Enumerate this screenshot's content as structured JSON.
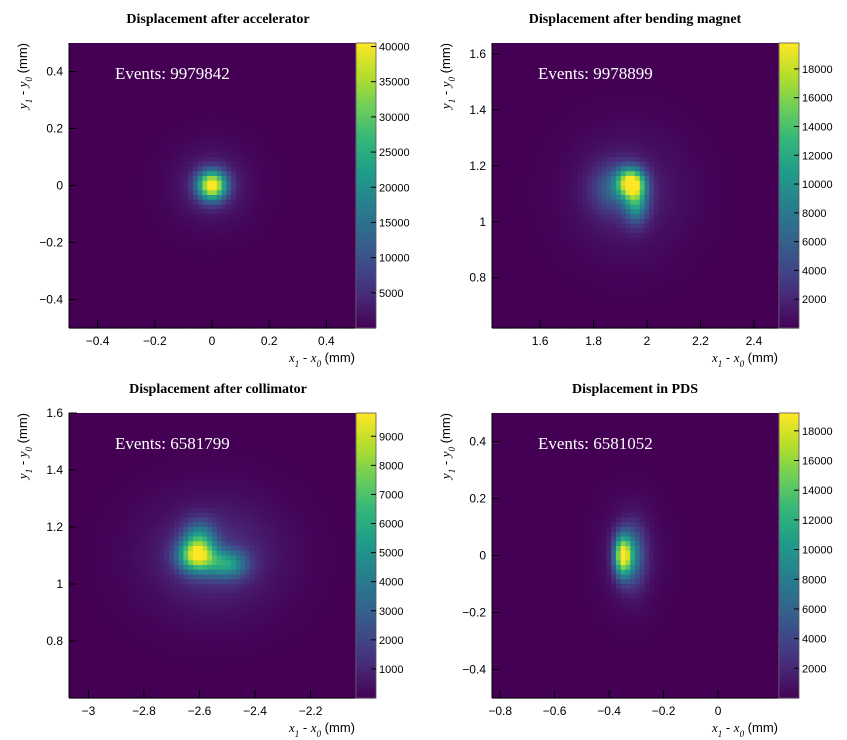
{
  "chart_data": [
    {
      "type": "heatmap",
      "title": "Displacement after accelerator",
      "annotation": "Events: 9979842",
      "xlabel": "x_1 - x_0 (mm)",
      "ylabel": "y_1 - y_0 (mm)",
      "xlim": [
        -0.5,
        0.5
      ],
      "ylim": [
        -0.5,
        0.5
      ],
      "xticks": [
        "−0.4",
        "−0.2",
        "0",
        "0.2",
        "0.4"
      ],
      "xtick_values": [
        -0.4,
        -0.2,
        0,
        0.2,
        0.4
      ],
      "yticks": [
        "−0.4",
        "−0.2",
        "0",
        "0.2",
        "0.4"
      ],
      "ytick_values": [
        -0.4,
        -0.2,
        0,
        0.2,
        0.4
      ],
      "zlim": [
        0,
        40500
      ],
      "colorbar_ticks": [
        "5000",
        "10000",
        "15000",
        "20000",
        "25000",
        "30000",
        "35000",
        "40000"
      ],
      "colorbar_values": [
        5000,
        10000,
        15000,
        20000,
        25000,
        30000,
        35000,
        40000
      ],
      "colormap": "viridis",
      "peaks": [
        {
          "x": 0.0,
          "y": 0.0,
          "value": 40500,
          "sigma_x": 0.035,
          "sigma_y": 0.035
        },
        {
          "x": 0.0,
          "y": 0.0,
          "value": 4000,
          "sigma_x": 0.09,
          "sigma_y": 0.09
        }
      ]
    },
    {
      "type": "heatmap",
      "title": "Displacement after bending magnet",
      "annotation": "Events: 9978899",
      "xlabel": "x_1 - x_0 (mm)",
      "ylabel": "y_1 - y_0 (mm)",
      "xlim": [
        1.42,
        2.49
      ],
      "ylim": [
        0.62,
        1.64
      ],
      "xticks": [
        "1.6",
        "1.8",
        "2",
        "2.2",
        "2.4"
      ],
      "xtick_values": [
        1.6,
        1.8,
        2.0,
        2.2,
        2.4
      ],
      "yticks": [
        "0.8",
        "1",
        "1.2",
        "1.4",
        "1.6"
      ],
      "ytick_values": [
        0.8,
        1.0,
        1.2,
        1.4,
        1.6
      ],
      "zlim": [
        0,
        19800
      ],
      "colorbar_ticks": [
        "2000",
        "4000",
        "6000",
        "8000",
        "10000",
        "12000",
        "14000",
        "16000",
        "18000"
      ],
      "colorbar_values": [
        2000,
        4000,
        6000,
        8000,
        10000,
        12000,
        14000,
        16000,
        18000
      ],
      "colormap": "viridis",
      "peaks": [
        {
          "x": 1.94,
          "y": 1.14,
          "value": 17000,
          "sigma_x": 0.035,
          "sigma_y": 0.035
        },
        {
          "x": 1.96,
          "y": 1.07,
          "value": 9000,
          "sigma_x": 0.03,
          "sigma_y": 0.05
        },
        {
          "x": 1.88,
          "y": 1.12,
          "value": 5000,
          "sigma_x": 0.06,
          "sigma_y": 0.06
        },
        {
          "x": 1.93,
          "y": 1.1,
          "value": 1800,
          "sigma_x": 0.14,
          "sigma_y": 0.14
        }
      ]
    },
    {
      "type": "heatmap",
      "title": "Displacement after collimator",
      "annotation": "Events: 6581799",
      "xlabel": "x_1 - x_0 (mm)",
      "ylabel": "y_1 - y_0 (mm)",
      "xlim": [
        -3.07,
        -2.04
      ],
      "ylim": [
        0.6,
        1.6
      ],
      "xticks": [
        "−3",
        "−2.8",
        "−2.6",
        "−2.4",
        "−2.2"
      ],
      "xtick_values": [
        -3.0,
        -2.8,
        -2.6,
        -2.4,
        -2.2
      ],
      "yticks": [
        "0.8",
        "1",
        "1.2",
        "1.4",
        "1.6"
      ],
      "ytick_values": [
        0.8,
        1.0,
        1.2,
        1.4,
        1.6
      ],
      "zlim": [
        0,
        9800
      ],
      "colorbar_ticks": [
        "1000",
        "2000",
        "3000",
        "4000",
        "5000",
        "6000",
        "7000",
        "8000",
        "9000"
      ],
      "colorbar_values": [
        1000,
        2000,
        3000,
        4000,
        5000,
        6000,
        7000,
        8000,
        9000
      ],
      "colormap": "viridis",
      "peaks": [
        {
          "x": -2.61,
          "y": 1.1,
          "value": 8500,
          "sigma_x": 0.045,
          "sigma_y": 0.04
        },
        {
          "x": -2.5,
          "y": 1.07,
          "value": 4500,
          "sigma_x": 0.05,
          "sigma_y": 0.035
        },
        {
          "x": -2.6,
          "y": 1.17,
          "value": 3000,
          "sigma_x": 0.04,
          "sigma_y": 0.04
        },
        {
          "x": -2.55,
          "y": 1.1,
          "value": 1400,
          "sigma_x": 0.16,
          "sigma_y": 0.13
        }
      ]
    },
    {
      "type": "heatmap",
      "title": "Displacement in PDS",
      "annotation": "Events: 6581052",
      "xlabel": "x_1 - x_0 (mm)",
      "ylabel": "y_1 - y_0 (mm)",
      "xlim": [
        -0.83,
        0.22
      ],
      "ylim": [
        -0.5,
        0.5
      ],
      "xticks": [
        "−0.8",
        "−0.6",
        "−0.4",
        "−0.2",
        "0"
      ],
      "xtick_values": [
        -0.8,
        -0.6,
        -0.4,
        -0.2,
        0.0
      ],
      "yticks": [
        "−0.4",
        "−0.2",
        "0",
        "0.2",
        "0.4"
      ],
      "ytick_values": [
        -0.4,
        -0.2,
        0.0,
        0.2,
        0.4
      ],
      "zlim": [
        0,
        19200
      ],
      "colorbar_ticks": [
        "2000",
        "4000",
        "6000",
        "8000",
        "10000",
        "12000",
        "14000",
        "16000",
        "18000"
      ],
      "colorbar_values": [
        2000,
        4000,
        6000,
        8000,
        10000,
        12000,
        14000,
        16000,
        18000
      ],
      "colormap": "viridis",
      "peaks": [
        {
          "x": -0.35,
          "y": 0.0,
          "value": 17000,
          "sigma_x": 0.022,
          "sigma_y": 0.05
        },
        {
          "x": -0.31,
          "y": 0.0,
          "value": 6000,
          "sigma_x": 0.03,
          "sigma_y": 0.07
        },
        {
          "x": -0.32,
          "y": 0.0,
          "value": 1500,
          "sigma_x": 0.07,
          "sigma_y": 0.12
        }
      ]
    }
  ]
}
